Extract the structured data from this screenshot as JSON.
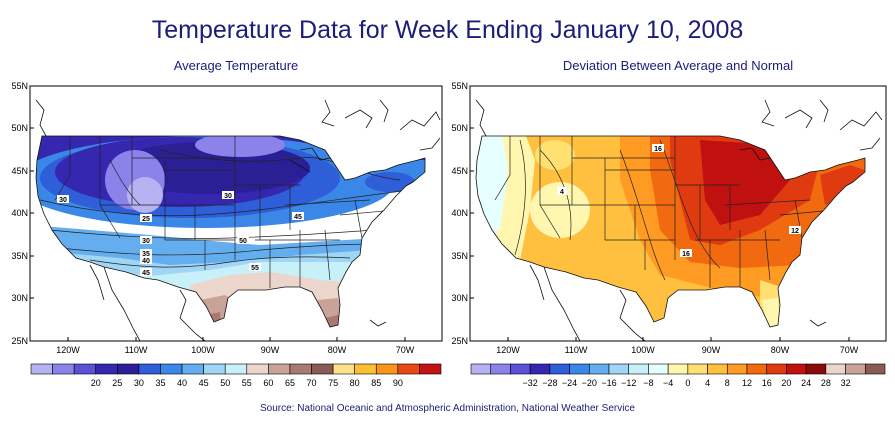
{
  "title": "Temperature Data for Week Ending January 10, 2008",
  "source": "Source:  National Oceanic and Atmospheric Administration, National Weather Service",
  "panels": [
    {
      "title": "Average Temperature",
      "lat_labels": [
        "55N",
        "50N",
        "45N",
        "40N",
        "35N",
        "30N",
        "25N"
      ],
      "lon_labels": [
        "120W",
        "110W",
        "100W",
        "90W",
        "80W",
        "70W"
      ],
      "contour_labels": [
        "30",
        "30",
        "25",
        "30",
        "35",
        "40",
        "45",
        "45",
        "50",
        "55"
      ],
      "legend": {
        "colors": [
          "#b7b2f2",
          "#8b82ea",
          "#5d52d6",
          "#3627b0",
          "#2b1f96",
          "#2e5ed8",
          "#3a87e8",
          "#64aef0",
          "#9fd6f5",
          "#c7f0f8",
          "#ecd6cc",
          "#c9a398",
          "#a87a70",
          "#8a5b52",
          "#fce08a",
          "#fbbf32",
          "#f8941c",
          "#e84a14",
          "#c21414"
        ],
        "labels": [
          "20",
          "25",
          "30",
          "35",
          "40",
          "45",
          "50",
          "55",
          "60",
          "65",
          "70",
          "75",
          "80",
          "85",
          "90"
        ]
      }
    },
    {
      "title": "Deviation Between Average and Normal",
      "lat_labels": [
        "55N",
        "50N",
        "45N",
        "40N",
        "35N",
        "30N",
        "25N"
      ],
      "lon_labels": [
        "120W",
        "110W",
        "100W",
        "90W",
        "80W",
        "70W"
      ],
      "contour_labels": [
        "16",
        "4",
        "16",
        "12"
      ],
      "legend": {
        "colors": [
          "#b7b2f2",
          "#8b82ea",
          "#5d52d6",
          "#3627b0",
          "#2e5ed8",
          "#3a87e8",
          "#64aef0",
          "#9fd6f5",
          "#c7f0f8",
          "#e6ffff",
          "#fff7b0",
          "#ffe070",
          "#ffc040",
          "#ff9a22",
          "#f26a10",
          "#e03a10",
          "#c01010",
          "#8a0a0a",
          "#ecd6cc",
          "#c9a398",
          "#8a5b52"
        ],
        "labels": [
          "-32",
          "-28",
          "-24",
          "-20",
          "-16",
          "-12",
          "-8",
          "-4",
          "0",
          "4",
          "8",
          "12",
          "16",
          "20",
          "24",
          "28",
          "32"
        ]
      }
    }
  ]
}
